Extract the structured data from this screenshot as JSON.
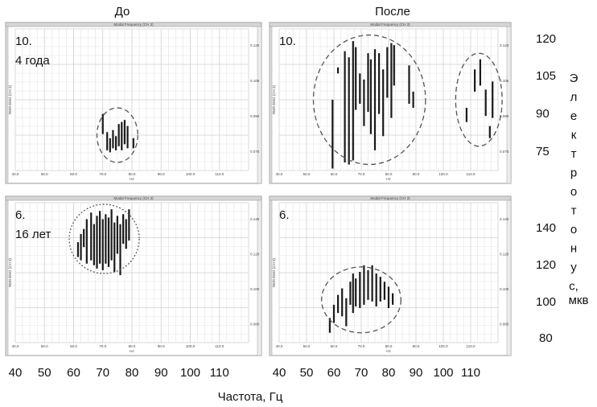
{
  "headers": {
    "before": "До",
    "after": "После"
  },
  "panels": [
    {
      "id": "top-left",
      "label_lines": [
        "10.",
        "4 года"
      ]
    },
    {
      "id": "top-right",
      "label_lines": [
        "10."
      ]
    },
    {
      "id": "bottom-left",
      "label_lines": [
        "6.",
        "16 лет"
      ]
    },
    {
      "id": "bottom-right",
      "label_lines": [
        "6."
      ]
    }
  ],
  "panel_inner": {
    "title": "Modal Frequency (CH 3)",
    "x_axis_unit": "Hz",
    "y_axis_label": "RMS EMG (CH 3)",
    "x_ticks": [
      "40.0",
      "50.0",
      "60.0",
      "70.0",
      "80.0",
      "90.0",
      "100.0",
      "110.0"
    ],
    "y_ticks_top": [
      "0.120",
      "0.105",
      "0.090",
      "0.075"
    ],
    "y_ticks_bottom": [
      "0.140",
      "0.120",
      "0.100",
      "0.080"
    ]
  },
  "x_axis": {
    "label": "Частота, Гц",
    "ticks": [
      "40",
      "50",
      "60",
      "70",
      "80",
      "90",
      "100",
      "110"
    ]
  },
  "y_axis": {
    "label_letters": [
      "Э",
      "л",
      "е",
      "к",
      "т",
      "р",
      "о",
      "т",
      "о",
      "н",
      "у",
      "с,"
    ],
    "label_tail": "мкв",
    "ticks_top": [
      "120",
      "105",
      "90",
      "75"
    ],
    "ticks_bottom": [
      "140",
      "120",
      "100",
      "80"
    ]
  },
  "chart_data": [
    {
      "type": "range-bar",
      "panel": "top-left",
      "xlim": [
        40,
        120
      ],
      "ylim": [
        60,
        130
      ],
      "bars": [
        {
          "x": 70.0,
          "y0": 78,
          "y1": 88
        },
        {
          "x": 71.5,
          "y0": 70,
          "y1": 79
        },
        {
          "x": 72.5,
          "y0": 69,
          "y1": 76
        },
        {
          "x": 73.5,
          "y0": 71,
          "y1": 80
        },
        {
          "x": 74.5,
          "y0": 70,
          "y1": 77
        },
        {
          "x": 75.5,
          "y0": 72,
          "y1": 83
        },
        {
          "x": 76.5,
          "y0": 70,
          "y1": 84
        },
        {
          "x": 77.5,
          "y0": 73,
          "y1": 85
        },
        {
          "x": 78.5,
          "y0": 71,
          "y1": 82
        },
        {
          "x": 80.5,
          "y0": 71,
          "y1": 76
        }
      ]
    },
    {
      "type": "range-bar",
      "panel": "top-right",
      "xlim": [
        40,
        120
      ],
      "ylim": [
        60,
        130
      ],
      "bars": [
        {
          "x": 59.5,
          "y0": 61,
          "y1": 95
        },
        {
          "x": 61.5,
          "y0": 108,
          "y1": 111
        },
        {
          "x": 64.0,
          "y0": 64,
          "y1": 119
        },
        {
          "x": 65.5,
          "y0": 63,
          "y1": 116
        },
        {
          "x": 67.0,
          "y0": 65,
          "y1": 124
        },
        {
          "x": 68.0,
          "y0": 90,
          "y1": 121
        },
        {
          "x": 69.5,
          "y0": 93,
          "y1": 108
        },
        {
          "x": 71.0,
          "y0": 82,
          "y1": 105
        },
        {
          "x": 72.5,
          "y0": 89,
          "y1": 118
        },
        {
          "x": 73.5,
          "y0": 78,
          "y1": 115
        },
        {
          "x": 75.0,
          "y0": 70,
          "y1": 120
        },
        {
          "x": 76.5,
          "y0": 88,
          "y1": 118
        },
        {
          "x": 78.0,
          "y0": 77,
          "y1": 110
        },
        {
          "x": 79.5,
          "y0": 96,
          "y1": 121
        },
        {
          "x": 81.0,
          "y0": 86,
          "y1": 123
        },
        {
          "x": 82.0,
          "y0": 102,
          "y1": 122
        },
        {
          "x": 87.5,
          "y0": 93,
          "y1": 112
        },
        {
          "x": 89.0,
          "y0": 91,
          "y1": 99
        },
        {
          "x": 108.5,
          "y0": 84,
          "y1": 91
        },
        {
          "x": 111.5,
          "y0": 99,
          "y1": 110
        },
        {
          "x": 113.5,
          "y0": 102,
          "y1": 115
        },
        {
          "x": 115.5,
          "y0": 87,
          "y1": 100
        },
        {
          "x": 117.0,
          "y0": 76,
          "y1": 82
        },
        {
          "x": 118.0,
          "y0": 86,
          "y1": 104
        }
      ]
    },
    {
      "type": "range-bar",
      "panel": "bottom-left",
      "xlim": [
        40,
        120
      ],
      "ylim": [
        70,
        155
      ],
      "bars": [
        {
          "x": 61.5,
          "y0": 122,
          "y1": 131
        },
        {
          "x": 62.5,
          "y0": 120,
          "y1": 136
        },
        {
          "x": 63.5,
          "y0": 128,
          "y1": 139
        },
        {
          "x": 64.5,
          "y0": 118,
          "y1": 145
        },
        {
          "x": 66.0,
          "y0": 120,
          "y1": 149
        },
        {
          "x": 67.0,
          "y0": 117,
          "y1": 142
        },
        {
          "x": 68.0,
          "y0": 115,
          "y1": 147
        },
        {
          "x": 69.0,
          "y0": 118,
          "y1": 150
        },
        {
          "x": 70.0,
          "y0": 114,
          "y1": 145
        },
        {
          "x": 71.0,
          "y0": 118,
          "y1": 148
        },
        {
          "x": 72.0,
          "y0": 116,
          "y1": 146
        },
        {
          "x": 73.0,
          "y0": 120,
          "y1": 151
        },
        {
          "x": 74.0,
          "y0": 113,
          "y1": 143
        },
        {
          "x": 75.0,
          "y0": 124,
          "y1": 147
        },
        {
          "x": 76.0,
          "y0": 111,
          "y1": 142
        },
        {
          "x": 77.0,
          "y0": 130,
          "y1": 148
        },
        {
          "x": 78.0,
          "y0": 127,
          "y1": 145
        },
        {
          "x": 79.0,
          "y0": 132,
          "y1": 151
        }
      ]
    },
    {
      "type": "range-bar",
      "panel": "bottom-right",
      "xlim": [
        40,
        120
      ],
      "ylim": [
        70,
        155
      ],
      "bars": [
        {
          "x": 58.5,
          "y0": 76,
          "y1": 85
        },
        {
          "x": 60.0,
          "y0": 82,
          "y1": 93
        },
        {
          "x": 61.5,
          "y0": 88,
          "y1": 99
        },
        {
          "x": 63.0,
          "y0": 86,
          "y1": 103
        },
        {
          "x": 64.5,
          "y0": 80,
          "y1": 97
        },
        {
          "x": 66.0,
          "y0": 93,
          "y1": 107
        },
        {
          "x": 67.0,
          "y0": 88,
          "y1": 112
        },
        {
          "x": 68.0,
          "y0": 92,
          "y1": 109
        },
        {
          "x": 69.5,
          "y0": 91,
          "y1": 113
        },
        {
          "x": 71.0,
          "y0": 93,
          "y1": 117
        },
        {
          "x": 72.5,
          "y0": 96,
          "y1": 114
        },
        {
          "x": 74.0,
          "y0": 95,
          "y1": 117
        },
        {
          "x": 75.5,
          "y0": 92,
          "y1": 112
        },
        {
          "x": 77.0,
          "y0": 95,
          "y1": 110
        },
        {
          "x": 78.5,
          "y0": 96,
          "y1": 107
        },
        {
          "x": 80.0,
          "y0": 91,
          "y1": 104
        },
        {
          "x": 81.5,
          "y0": 93,
          "y1": 100
        }
      ]
    }
  ],
  "ellipses": [
    {
      "panel": "top-left",
      "style": "dashed",
      "cx": 75.0,
      "cy": 77.5,
      "rx": 7.0,
      "ry": 13.5
    },
    {
      "panel": "top-right",
      "style": "dashed",
      "cx": 73.0,
      "cy": 95.0,
      "rx": 20.5,
      "ry": 32.0
    },
    {
      "panel": "top-right",
      "style": "dashed",
      "cx": 113.0,
      "cy": 95.0,
      "rx": 8.5,
      "ry": 23.0
    },
    {
      "panel": "bottom-left",
      "style": "dotted",
      "cx": 70.5,
      "cy": 133.0,
      "rx": 12.0,
      "ry": 21.0
    },
    {
      "panel": "bottom-right",
      "style": "dashed",
      "cx": 70.0,
      "cy": 96.0,
      "rx": 14.5,
      "ry": 20.0
    }
  ],
  "colors": {
    "bar": "#1a1a1a",
    "ellipse": "#555555",
    "grid": "#cfcfcf"
  }
}
